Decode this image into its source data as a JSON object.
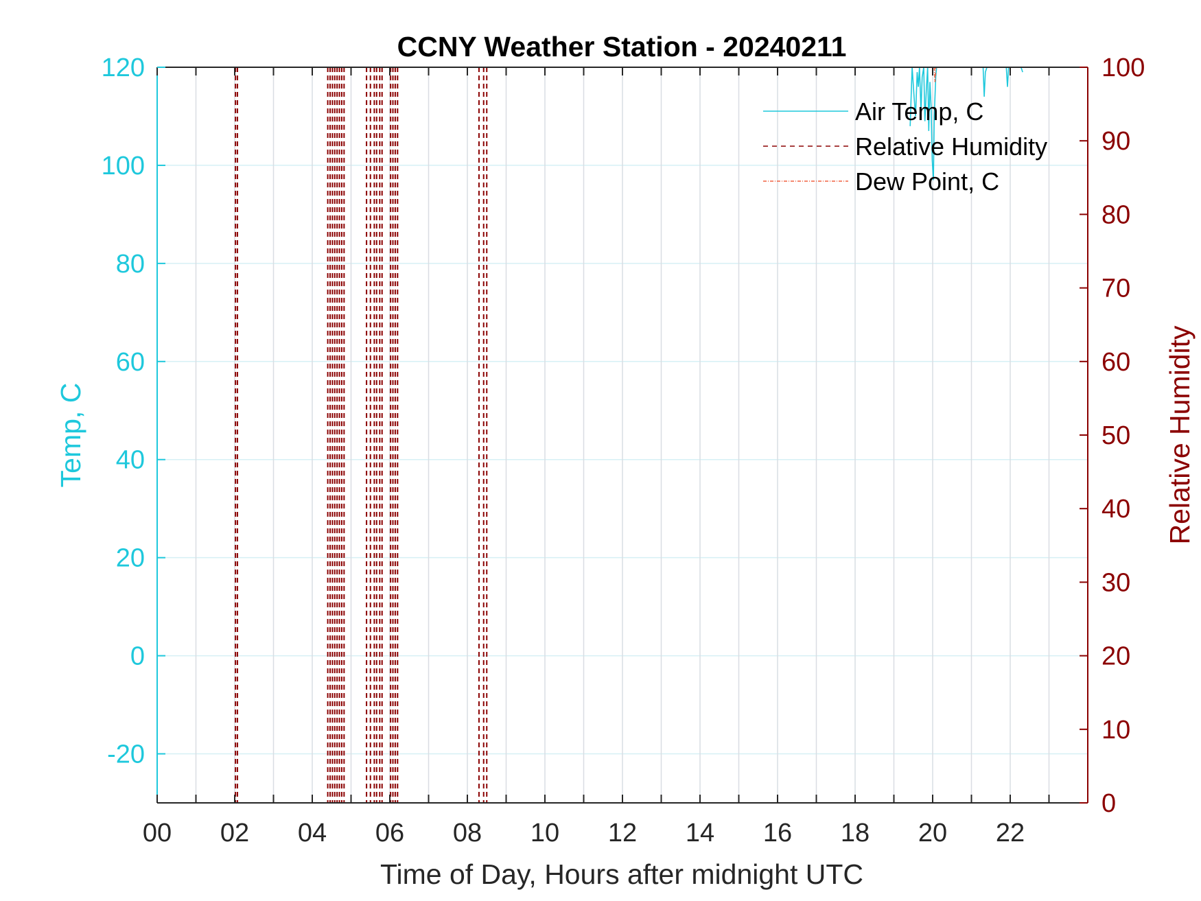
{
  "chart_data": {
    "type": "line",
    "title": "CCNY Weather Station - 20240211",
    "xlabel": "Time of Day, Hours after midnight UTC",
    "ylabel_left": "Temp, C",
    "ylabel_right": "Relative Humidity",
    "xlim": [
      0,
      24
    ],
    "ylim_left": [
      -30,
      120
    ],
    "ylim_right": [
      0,
      100
    ],
    "x_ticks": [
      0,
      2,
      4,
      6,
      8,
      10,
      12,
      14,
      16,
      18,
      20,
      22
    ],
    "x_tick_labels": [
      "00",
      "02",
      "04",
      "06",
      "08",
      "10",
      "12",
      "14",
      "16",
      "18",
      "20",
      "22"
    ],
    "x_minor_grid": [
      1,
      3,
      5,
      7,
      9,
      11,
      13,
      15,
      17,
      19,
      21,
      23
    ],
    "y_left_ticks": [
      -20,
      0,
      20,
      40,
      60,
      80,
      100,
      120
    ],
    "y_left_tick_labels": [
      "-20",
      "0",
      "20",
      "40",
      "60",
      "80",
      "100",
      "120"
    ],
    "y_right_ticks": [
      0,
      10,
      20,
      30,
      40,
      50,
      60,
      70,
      80,
      90,
      100
    ],
    "y_right_tick_labels": [
      "0",
      "10",
      "20",
      "30",
      "40",
      "50",
      "60",
      "70",
      "80",
      "90",
      "100"
    ],
    "legend_position": "top-right",
    "colors": {
      "temp": "#1EC8DC",
      "rh": "#8B0000",
      "dew": "#F06040",
      "grid_h": "#D6F0F5",
      "grid_v": "#D9DDE3",
      "axis": "#262626"
    },
    "series": [
      {
        "name": "Air Temp, C",
        "axis": "left",
        "style": "solid",
        "x": [
          19.42,
          19.47,
          19.52,
          19.56,
          19.6,
          19.63,
          19.66,
          19.7,
          19.73,
          19.77,
          19.8,
          19.84,
          19.87,
          19.9,
          19.93,
          19.96,
          19.99,
          20.02,
          20.04,
          20.06,
          20.08,
          20.1,
          null,
          21.3,
          21.33,
          21.36,
          21.4,
          null,
          21.9,
          21.93,
          21.96,
          null,
          22.28,
          22.32
        ],
        "y": [
          108,
          120,
          114,
          110,
          119,
          116,
          120,
          111,
          118,
          120,
          109,
          116,
          120,
          107,
          117,
          112,
          101,
          97,
          110,
          114,
          118,
          120,
          null,
          120,
          114,
          119,
          120,
          null,
          120,
          116,
          120,
          null,
          120,
          119
        ]
      },
      {
        "name": "Relative Humidity",
        "axis": "right",
        "style": "dashed",
        "x_lines": [
          2.02,
          2.07,
          4.4,
          4.46,
          4.52,
          4.58,
          4.64,
          4.7,
          4.76,
          4.82,
          5.4,
          5.5,
          5.6,
          5.66,
          5.74,
          5.8,
          6.02,
          6.08,
          6.14,
          6.2,
          8.3,
          8.42,
          8.5
        ]
      },
      {
        "name": "Dew Point, C",
        "axis": "left",
        "style": "dash-dot",
        "x": [
          20.04,
          20.06,
          20.08
        ],
        "y": [
          120,
          117,
          120
        ]
      }
    ]
  }
}
